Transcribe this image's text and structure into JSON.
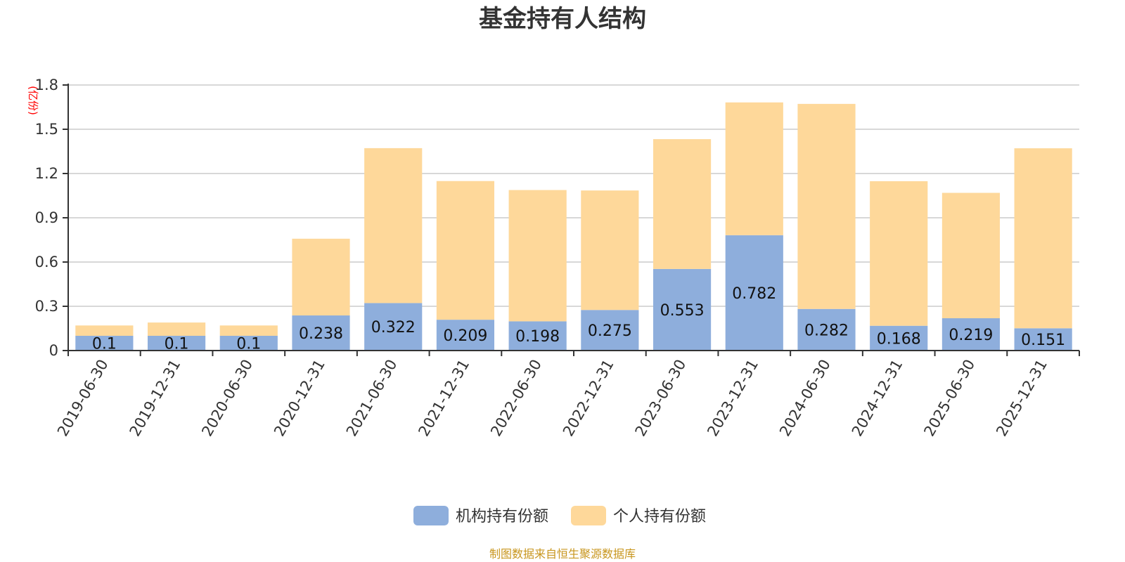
{
  "chart_data": {
    "type": "bar",
    "stacked": true,
    "title": "基金持有人结构",
    "ylabel": "(亿份)",
    "xlabel": "",
    "ylim": [
      0,
      1.8
    ],
    "yticks": [
      "0",
      "0.3",
      "0.6",
      "0.9",
      "1.2",
      "1.5",
      "1.8"
    ],
    "grid": true,
    "legend_position": "bottom-center",
    "categories": [
      "2019-06-30",
      "2019-12-31",
      "2020-06-30",
      "2020-12-31",
      "2021-06-30",
      "2021-12-31",
      "2022-06-30",
      "2022-12-31",
      "2023-06-30",
      "2023-12-31",
      "2024-06-30",
      "2024-12-31",
      "2025-06-30",
      "2025-12-31"
    ],
    "series": [
      {
        "name": "机构持有份额",
        "color": "#8eaedc",
        "values": [
          0.1,
          0.1,
          0.1,
          0.238,
          0.322,
          0.209,
          0.198,
          0.275,
          0.553,
          0.782,
          0.282,
          0.168,
          0.219,
          0.151
        ],
        "labels": [
          "0.1",
          "0.1",
          "0.1",
          "0.238",
          "0.322",
          "0.209",
          "0.198",
          "0.275",
          "0.553",
          "0.782",
          "0.282",
          "0.168",
          "0.219",
          "0.151"
        ]
      },
      {
        "name": "个人持有份额",
        "color": "#fed89a",
        "values": [
          0.07,
          0.09,
          0.07,
          0.52,
          1.05,
          0.94,
          0.89,
          0.81,
          0.88,
          0.9,
          1.39,
          0.98,
          0.85,
          1.22
        ]
      }
    ],
    "source": "制图数据来自恒生聚源数据库"
  }
}
